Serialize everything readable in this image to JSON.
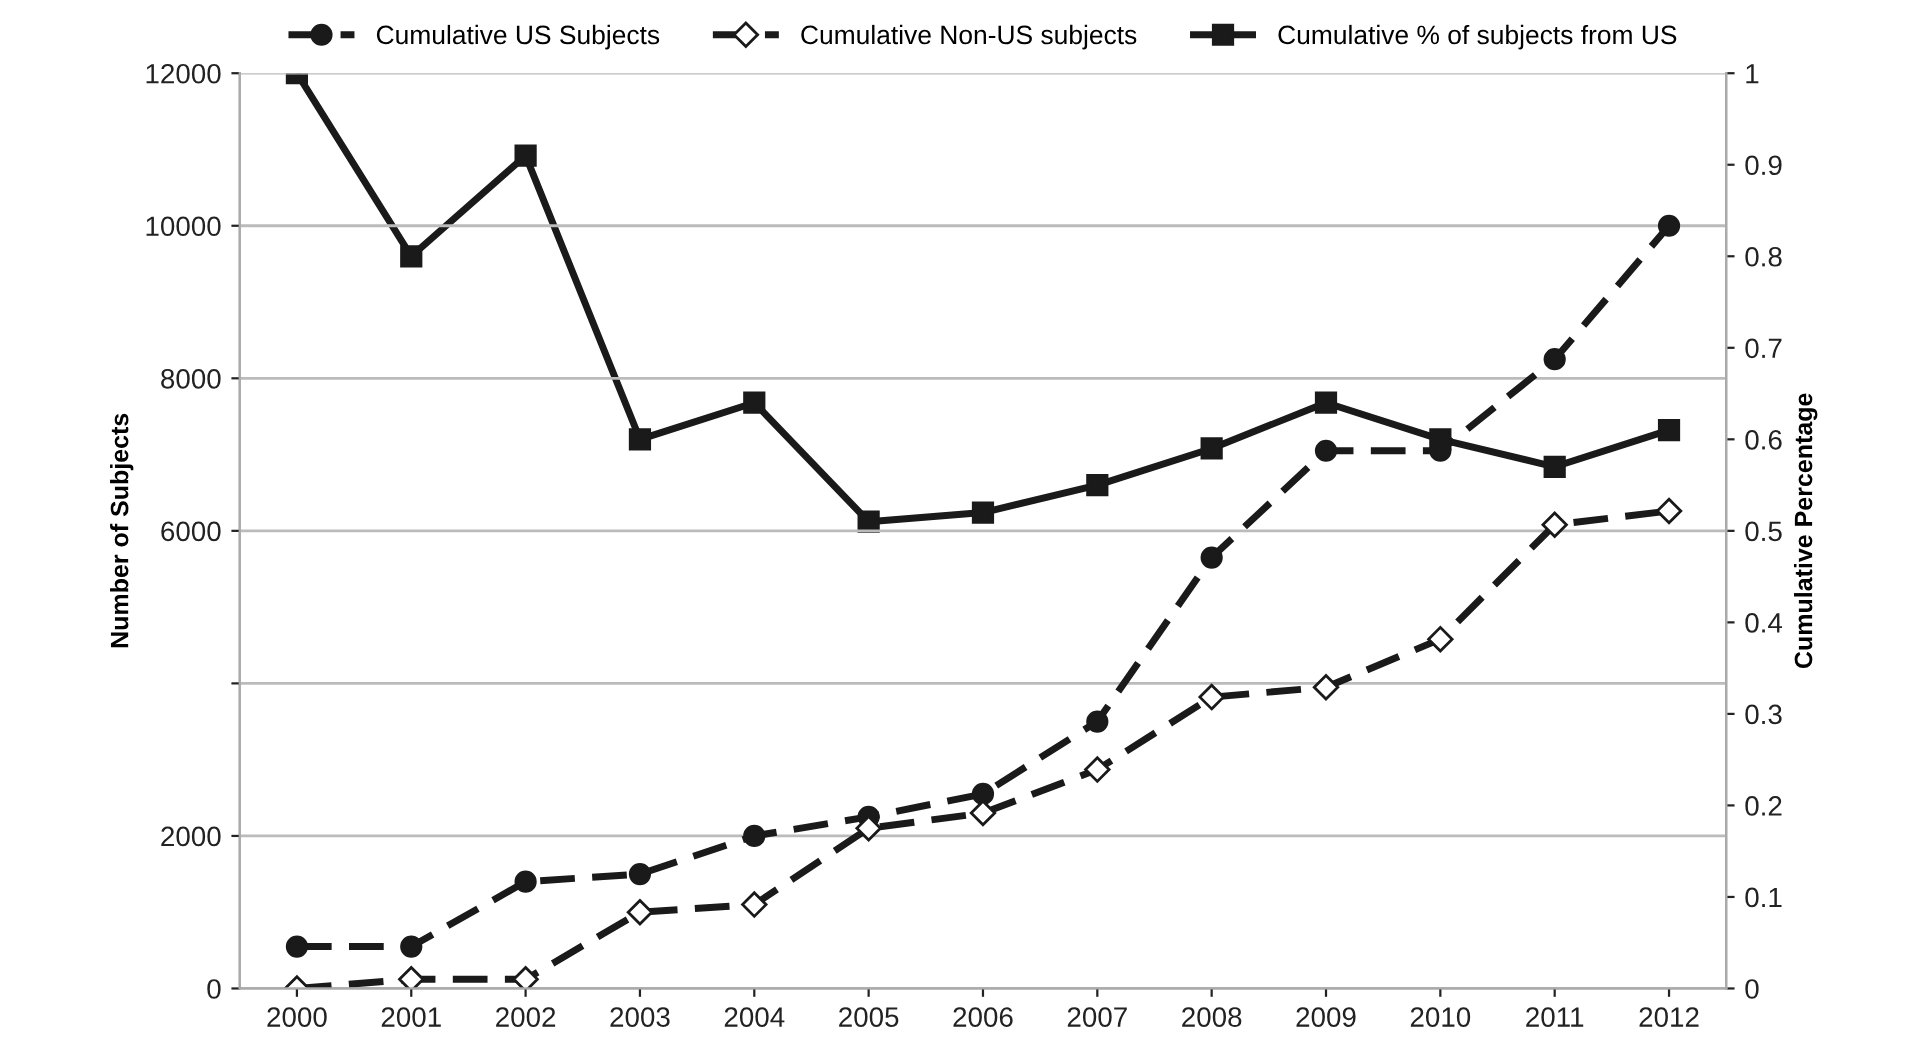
{
  "chart_data": {
    "type": "line",
    "categories": [
      "2000",
      "2001",
      "2002",
      "2003",
      "2004",
      "2005",
      "2006",
      "2007",
      "2008",
      "2009",
      "2010",
      "2011",
      "2012"
    ],
    "ylabel": "Number of Subjects",
    "y2label": "Cumulative Percentage",
    "ylim": [
      0,
      12000
    ],
    "yticks": [
      0,
      2000,
      {
        "value": 4000,
        "label": null
      },
      6000,
      8000,
      10000,
      12000
    ],
    "y2lim": [
      0,
      1
    ],
    "y2ticks": [
      0,
      0.1,
      0.2,
      0.3,
      0.4,
      0.5,
      0.6,
      0.7,
      0.8,
      0.9,
      1
    ],
    "grid": "y",
    "legend": "top",
    "series": [
      {
        "name": "Cumulative US Subjects",
        "color": "#1a1a1a",
        "marker": "circle",
        "line_style": "dashed",
        "values": [
          550,
          550,
          1400,
          1500,
          2000,
          2250,
          2550,
          3500,
          5650,
          7050,
          7050,
          8250,
          10000
        ]
      },
      {
        "name": "Cumulative Non-US subjects",
        "color": "#1a1a1a",
        "marker": "diamond",
        "line_style": "dashed",
        "values": [
          0,
          120,
          120,
          1000,
          1100,
          2100,
          2300,
          2870,
          3820,
          3950,
          4580,
          6080,
          6260
        ]
      },
      {
        "name": "Cumulative % of subjects from US",
        "color": "#1a1a1a",
        "marker": "square",
        "line_style": "solid",
        "axis": "y2",
        "values": [
          1.0,
          0.8,
          0.91,
          0.6,
          0.64,
          0.51,
          0.52,
          0.55,
          0.59,
          0.64,
          0.6,
          0.57,
          0.61
        ]
      }
    ]
  }
}
